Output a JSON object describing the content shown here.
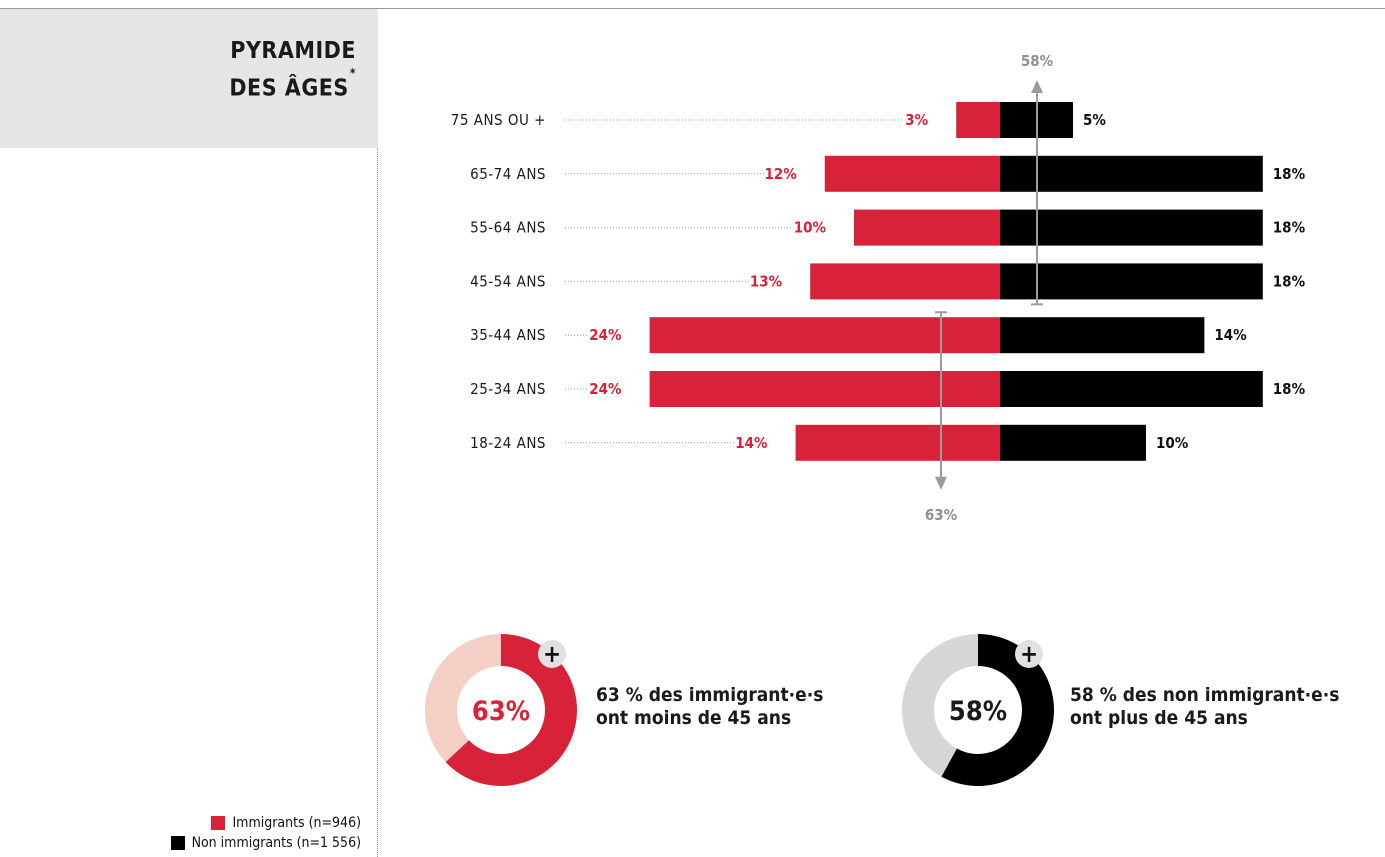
{
  "title": {
    "line1": "PYRAMIDE",
    "line2": "DES ÂGES",
    "marker": "*"
  },
  "colors": {
    "immigrants": "#d7223a",
    "non_immigrants": "#000000",
    "immigrants_light": "#f4cfc6",
    "non_immigrants_light": "#d6d6d6",
    "arrow": "#9b9b9b",
    "label_gray": "#8f8f8f"
  },
  "legend": [
    {
      "label": "Immigrants (n=946)",
      "color": "#d7223a"
    },
    {
      "label": "Non immigrants (n=1 556)",
      "color": "#000000"
    }
  ],
  "chart_data": {
    "type": "bar",
    "orientation": "horizontal-pyramid",
    "categories": [
      "75 ANS OU +",
      "65-74 ANS",
      "55-64 ANS",
      "45-54 ANS",
      "35-44 ANS",
      "25-34 ANS",
      "18-24 ANS"
    ],
    "series": [
      {
        "name": "Immigrants (n=946)",
        "side": "left",
        "values": [
          3,
          12,
          10,
          13,
          24,
          24,
          14
        ],
        "labels": [
          "3%",
          "12%",
          "10%",
          "13%",
          "24%",
          "24%",
          "14%"
        ]
      },
      {
        "name": "Non immigrants (n=1 556)",
        "side": "right",
        "values": [
          5,
          18,
          18,
          18,
          14,
          18,
          10
        ],
        "labels": [
          "5%",
          "18%",
          "18%",
          "18%",
          "14%",
          "18%",
          "10%"
        ]
      }
    ],
    "xlim": [
      0,
      25
    ],
    "annotations": [
      {
        "label": "58%",
        "series": "Non immigrants (n=1 556)",
        "from_category": "45-54 ANS",
        "to_category": "75 ANS OU +",
        "direction": "up"
      },
      {
        "label": "63%",
        "series": "Immigrants (n=946)",
        "from_category": "35-44 ANS",
        "to_category": "18-24 ANS",
        "direction": "down"
      }
    ]
  },
  "donuts": [
    {
      "value": 63,
      "label": "63%",
      "line1": "63 % des immigrant·e·s",
      "line2": "ont moins de 45 ans",
      "plus": "+",
      "color": "#d7223a",
      "rest": "#f4cfc6",
      "label_color": "#d7223a"
    },
    {
      "value": 58,
      "label": "58%",
      "line1": "58 % des non immigrant·e·s",
      "line2": "ont plus de 45 ans",
      "plus": "+",
      "color": "#000000",
      "rest": "#d6d6d6",
      "label_color": "#1a1a1a"
    }
  ]
}
